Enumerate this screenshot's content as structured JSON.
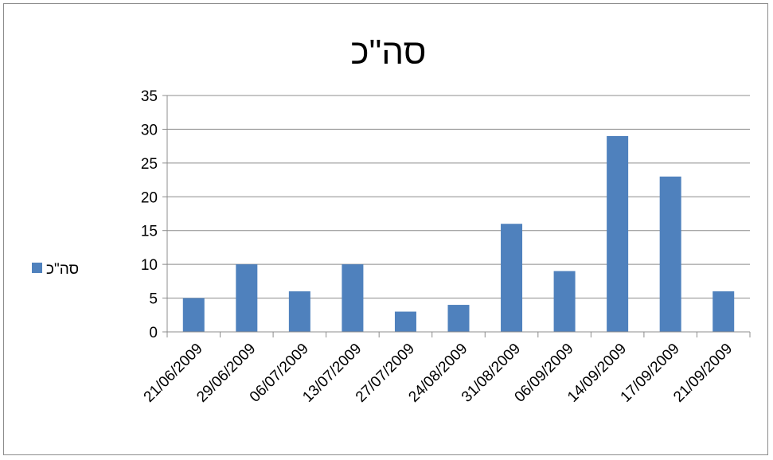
{
  "chart_data": {
    "type": "bar",
    "title": "סה\"כ",
    "xlabel": "",
    "ylabel": "",
    "categories": [
      "21/06/2009",
      "29/06/2009",
      "06/07/2009",
      "13/07/2009",
      "27/07/2009",
      "24/08/2009",
      "31/08/2009",
      "06/09/2009",
      "14/09/2009",
      "17/09/2009",
      "21/09/2009"
    ],
    "series": [
      {
        "name": "סה\"כ",
        "values": [
          5,
          10,
          6,
          10,
          3,
          4,
          16,
          9,
          29,
          23,
          6
        ],
        "color": "#4f81bd"
      }
    ],
    "ylim": [
      0,
      35
    ],
    "yticks": [
      "0",
      "5",
      "10",
      "15",
      "20",
      "25",
      "30",
      "35"
    ],
    "grid": true,
    "legend": "left"
  }
}
